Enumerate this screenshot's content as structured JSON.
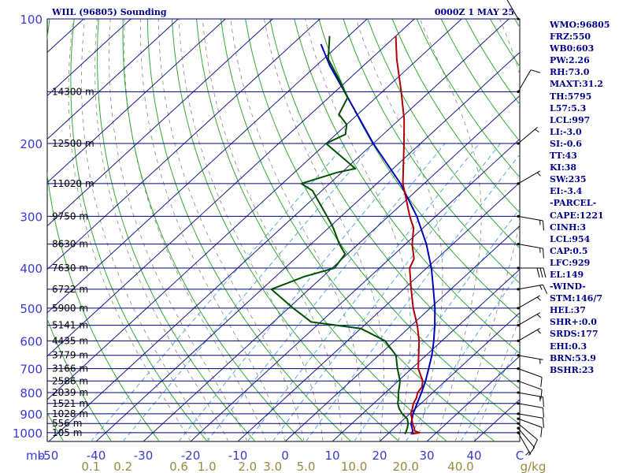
{
  "header": {
    "station": "WIIL (96805) Sounding",
    "time": "0000Z  1 MAY 25"
  },
  "indices": [
    "WMO:96805",
    "FRZ:550",
    "WB0:603",
    "PW:2.26",
    "RH:73.0",
    "MAXT:31.2",
    "TH:5795",
    "L57:5.3",
    "LCL:997",
    "LI:-3.0",
    "SI:-0.6",
    "TT:43",
    "KI:38",
    "SW:235",
    "EI:-3.4",
    "-PARCEL-",
    "CAPE:1221",
    "CINH:3",
    "LCL:954",
    "CAP:0.5",
    "LFC:929",
    "EL:149",
    "-WIND-",
    "STM:146/7",
    "HEL:37",
    "SHR+:0.0",
    "SRDS:177",
    "EHI:0.3",
    "BRN:53.9",
    "BSHR:23"
  ],
  "colors": {
    "isobar": "#00007a",
    "isotherm": "#1a1a8c",
    "dry_adiabat": "#33aa33",
    "mixing_ratio": "#55aadd",
    "moist_adiabat": "#8a8a70",
    "temperature": "#b00000",
    "dewpoint": "#005000",
    "parcel": "#0000bb",
    "header": "#00008b",
    "axis_label": "#3a3ad0",
    "wind": "#000000"
  },
  "chart_data": {
    "type": "skew-t log-p sounding",
    "pressure_axis_label": "mb",
    "pressure_ticks": [
      100,
      200,
      300,
      400,
      500,
      600,
      700,
      800,
      900,
      1000
    ],
    "height_labels": [
      {
        "p": 150,
        "label": "14300 m"
      },
      {
        "p": 200,
        "label": "12500 m"
      },
      {
        "p": 250,
        "label": "11020 m"
      },
      {
        "p": 300,
        "label": "9750 m"
      },
      {
        "p": 350,
        "label": "8630 m"
      },
      {
        "p": 400,
        "label": "7630 m"
      },
      {
        "p": 450,
        "label": "6722 m"
      },
      {
        "p": 500,
        "label": "5900 m"
      },
      {
        "p": 550,
        "label": "5141 m"
      },
      {
        "p": 600,
        "label": "4435 m"
      },
      {
        "p": 650,
        "label": "3779 m"
      },
      {
        "p": 700,
        "label": "3166 m"
      },
      {
        "p": 750,
        "label": "2586 m"
      },
      {
        "p": 800,
        "label": "2039 m"
      },
      {
        "p": 850,
        "label": "1521 m"
      },
      {
        "p": 900,
        "label": "1028 m"
      },
      {
        "p": 950,
        "label": "556 m"
      },
      {
        "p": 1000,
        "label": "105 m"
      }
    ],
    "temperature_ticks": [
      "-50",
      "-40",
      "-30",
      "-20",
      "-10",
      "0",
      "10",
      "20",
      "30",
      "40",
      "C"
    ],
    "temperature_values": [
      -50,
      -40,
      -30,
      -20,
      -10,
      0,
      10,
      20,
      30,
      40
    ],
    "mixing_ratio_labels": [
      "0.1",
      "0.2",
      "0.6",
      "1.0",
      "2.0",
      "3.0",
      "5.0",
      "10.0",
      "20.0",
      "40.0",
      "g/kg"
    ],
    "mixing_ratio_values": [
      0.1,
      0.2,
      0.6,
      1.0,
      2.0,
      3.0,
      5.0,
      10.0,
      20.0,
      40.0
    ],
    "temperature_profile": [
      [
        1007,
        25.0
      ],
      [
        1000,
        26.4
      ],
      [
        990,
        25.0
      ],
      [
        975,
        24.3
      ],
      [
        950,
        22.8
      ],
      [
        925,
        21.6
      ],
      [
        900,
        20.2
      ],
      [
        875,
        19.4
      ],
      [
        850,
        18.4
      ],
      [
        825,
        17.8
      ],
      [
        800,
        16.8
      ],
      [
        775,
        16.4
      ],
      [
        750,
        15.2
      ],
      [
        700,
        11.4
      ],
      [
        650,
        8.4
      ],
      [
        600,
        5.2
      ],
      [
        550,
        1.2
      ],
      [
        500,
        -3.6
      ],
      [
        450,
        -8.4
      ],
      [
        400,
        -13.6
      ],
      [
        380,
        -14.8
      ],
      [
        350,
        -18.6
      ],
      [
        320,
        -22.0
      ],
      [
        300,
        -25.5
      ],
      [
        250,
        -34.5
      ],
      [
        200,
        -43.5
      ],
      [
        175,
        -49.0
      ],
      [
        150,
        -56.0
      ],
      [
        125,
        -64.5
      ],
      [
        110,
        -70.0
      ]
    ],
    "dewpoint_profile": [
      [
        1007,
        23.6
      ],
      [
        1000,
        23.5
      ],
      [
        975,
        22.8
      ],
      [
        950,
        21.9
      ],
      [
        925,
        20.6
      ],
      [
        900,
        18.4
      ],
      [
        875,
        16.6
      ],
      [
        850,
        15.1
      ],
      [
        825,
        14.0
      ],
      [
        800,
        12.7
      ],
      [
        775,
        11.6
      ],
      [
        750,
        10.4
      ],
      [
        700,
        7.0
      ],
      [
        650,
        3.6
      ],
      [
        600,
        -2.0
      ],
      [
        560,
        -10.0
      ],
      [
        540,
        -22.0
      ],
      [
        500,
        -29.0
      ],
      [
        450,
        -38.0
      ],
      [
        420,
        -34.0
      ],
      [
        400,
        -29.5
      ],
      [
        370,
        -30.5
      ],
      [
        350,
        -34.0
      ],
      [
        320,
        -39.0
      ],
      [
        300,
        -43.0
      ],
      [
        260,
        -52.0
      ],
      [
        250,
        -56.0
      ],
      [
        235,
        -51.0
      ],
      [
        230,
        -48.0
      ],
      [
        200,
        -60.0
      ],
      [
        190,
        -58.0
      ],
      [
        180,
        -60.0
      ],
      [
        170,
        -64.0
      ],
      [
        155,
        -66.0
      ],
      [
        140,
        -72.0
      ],
      [
        125,
        -79.0
      ],
      [
        110,
        -84.0
      ]
    ],
    "parcel_profile": [
      [
        1007,
        25.0
      ],
      [
        990,
        24.6
      ],
      [
        954,
        22.7
      ],
      [
        900,
        20.7
      ],
      [
        850,
        19.2
      ],
      [
        800,
        17.6
      ],
      [
        750,
        15.8
      ],
      [
        700,
        13.6
      ],
      [
        650,
        11.2
      ],
      [
        600,
        8.3
      ],
      [
        550,
        4.9
      ],
      [
        500,
        1.0
      ],
      [
        450,
        -3.7
      ],
      [
        400,
        -9.0
      ],
      [
        350,
        -15.6
      ],
      [
        300,
        -24.0
      ],
      [
        250,
        -35.0
      ],
      [
        200,
        -50.0
      ],
      [
        150,
        -68.0
      ],
      [
        130,
        -77.0
      ],
      [
        115,
        -84.0
      ]
    ],
    "wind_barbs": [
      {
        "p": 1000,
        "dir": 150,
        "kt": 5
      },
      {
        "p": 975,
        "dir": 140,
        "kt": 10
      },
      {
        "p": 950,
        "dir": 130,
        "kt": 10
      },
      {
        "p": 925,
        "dir": 110,
        "kt": 10
      },
      {
        "p": 900,
        "dir": 100,
        "kt": 10
      },
      {
        "p": 850,
        "dir": 100,
        "kt": 10
      },
      {
        "p": 800,
        "dir": 100,
        "kt": 15
      },
      {
        "p": 750,
        "dir": 110,
        "kt": 10
      },
      {
        "p": 700,
        "dir": 110,
        "kt": 10
      },
      {
        "p": 650,
        "dir": 100,
        "kt": 5
      },
      {
        "p": 600,
        "dir": 60,
        "kt": 5
      },
      {
        "p": 550,
        "dir": 60,
        "kt": 5
      },
      {
        "p": 500,
        "dir": 60,
        "kt": 5
      },
      {
        "p": 450,
        "dir": 80,
        "kt": 15
      },
      {
        "p": 400,
        "dir": 90,
        "kt": 30
      },
      {
        "p": 350,
        "dir": 100,
        "kt": 15
      },
      {
        "p": 300,
        "dir": 100,
        "kt": 15
      },
      {
        "p": 250,
        "dir": 60,
        "kt": 5
      },
      {
        "p": 200,
        "dir": 50,
        "kt": 5
      },
      {
        "p": 150,
        "dir": 30,
        "kt": 10
      },
      {
        "p": 100,
        "dir": 330,
        "kt": 10
      }
    ]
  }
}
